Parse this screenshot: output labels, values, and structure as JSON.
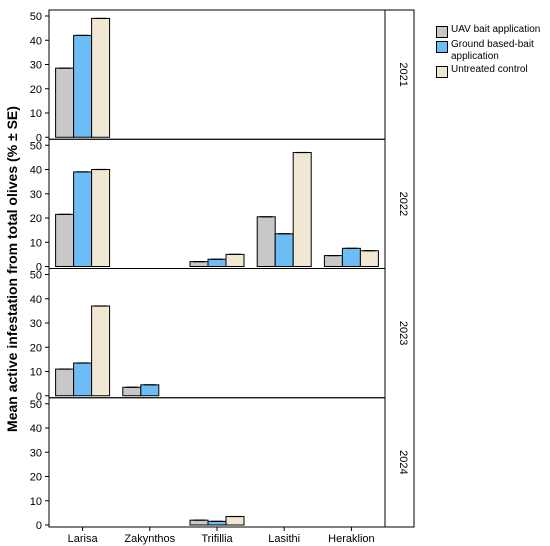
{
  "chart_data": {
    "type": "bar",
    "ylabel": "Mean active infestation from total olives (% ± SE)",
    "ylim": [
      0,
      50
    ],
    "yticks": [
      0,
      10,
      20,
      30,
      40,
      50
    ],
    "categories": [
      "Larisa",
      "Zakynthos",
      "Trifillia",
      "Lasithi",
      "Heraklion"
    ],
    "colors": [
      "#c8c8c8",
      "#6cbcf6",
      "#f1e8d4"
    ],
    "legend_position": "top-right",
    "series_names": [
      "UAV bait application",
      "Ground based-bait application",
      "Untreated control"
    ],
    "facets": [
      {
        "label": "2021",
        "series": [
          {
            "name": "UAV bait application",
            "values": [
              28.5,
              null,
              null,
              null,
              null
            ]
          },
          {
            "name": "Ground based-bait application",
            "values": [
              42,
              null,
              null,
              null,
              null
            ]
          },
          {
            "name": "Untreated control",
            "values": [
              49,
              null,
              null,
              null,
              null
            ]
          }
        ]
      },
      {
        "label": "2022",
        "series": [
          {
            "name": "UAV bait application",
            "values": [
              21.5,
              null,
              2,
              20.5,
              4.5
            ]
          },
          {
            "name": "Ground based-bait application",
            "values": [
              39,
              null,
              3,
              13.5,
              7.5
            ]
          },
          {
            "name": "Untreated control",
            "values": [
              40,
              null,
              5,
              47,
              6.5
            ]
          }
        ]
      },
      {
        "label": "2023",
        "series": [
          {
            "name": "UAV bait application",
            "values": [
              11,
              3.5,
              null,
              null,
              null
            ]
          },
          {
            "name": "Ground based-bait application",
            "values": [
              13.5,
              4.5,
              null,
              null,
              null
            ]
          },
          {
            "name": "Untreated control",
            "values": [
              37,
              null,
              null,
              null,
              null
            ]
          }
        ]
      },
      {
        "label": "2024",
        "series": [
          {
            "name": "UAV bait application",
            "values": [
              null,
              null,
              2,
              null,
              null
            ]
          },
          {
            "name": "Ground based-bait application",
            "values": [
              null,
              null,
              1.5,
              null,
              null
            ]
          },
          {
            "name": "Untreated control",
            "values": [
              null,
              null,
              3.5,
              null,
              null
            ]
          }
        ]
      }
    ]
  }
}
